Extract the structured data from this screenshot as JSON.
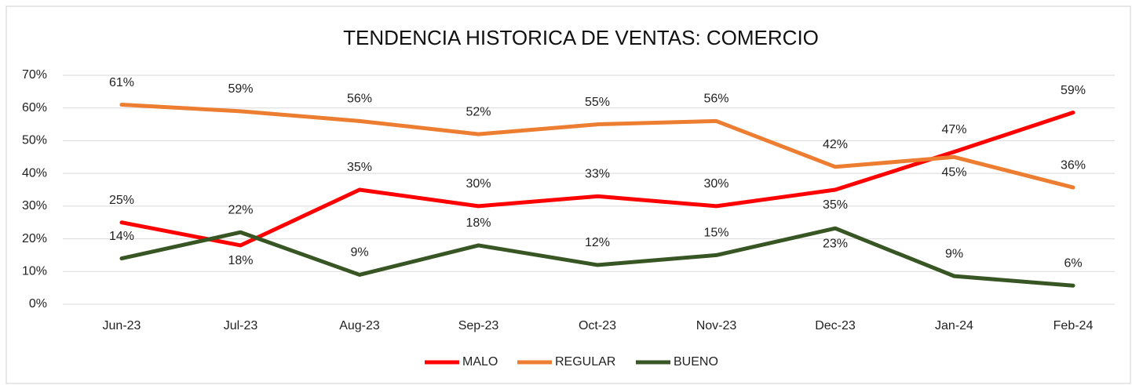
{
  "chart_data": {
    "type": "line",
    "title": "TENDENCIA HISTORICA DE VENTAS: COMERCIO",
    "categories": [
      "Jun-23",
      "Jul-23",
      "Aug-23",
      "Sep-23",
      "Oct-23",
      "Nov-23",
      "Dec-23",
      "Jan-24",
      "Feb-24"
    ],
    "series": [
      {
        "name": "MALO",
        "color": "#ff0000",
        "values": [
          25,
          18,
          35,
          30,
          33,
          30,
          35,
          46.6,
          58.6
        ],
        "value_labels": [
          "25%",
          "18%",
          "35%",
          "30%",
          "33%",
          "30%",
          "35%",
          "47%",
          "59%"
        ]
      },
      {
        "name": "REGULAR",
        "color": "#ed7d31",
        "values": [
          61,
          59,
          56,
          52,
          55,
          56,
          42,
          45,
          35.7
        ],
        "value_labels": [
          "61%",
          "59%",
          "56%",
          "52%",
          "55%",
          "56%",
          "42%",
          "45%",
          "36%"
        ]
      },
      {
        "name": "BUENO",
        "color": "#375623",
        "values": [
          14,
          22,
          9,
          18,
          12,
          15,
          23.2,
          8.6,
          5.7
        ],
        "value_labels": [
          "14%",
          "22%",
          "9%",
          "18%",
          "12%",
          "15%",
          "23%",
          "9%",
          "6%"
        ]
      }
    ],
    "ylim": [
      0,
      70
    ],
    "yticks": [
      {
        "value": 0,
        "label": "0%"
      },
      {
        "value": 10,
        "label": "10%"
      },
      {
        "value": 20,
        "label": "20%"
      },
      {
        "value": 30,
        "label": "30%"
      },
      {
        "value": 40,
        "label": "40%"
      },
      {
        "value": 50,
        "label": "50%"
      },
      {
        "value": 60,
        "label": "60%"
      },
      {
        "value": 70,
        "label": "70%"
      }
    ],
    "grid": true,
    "legend": "bottom"
  }
}
